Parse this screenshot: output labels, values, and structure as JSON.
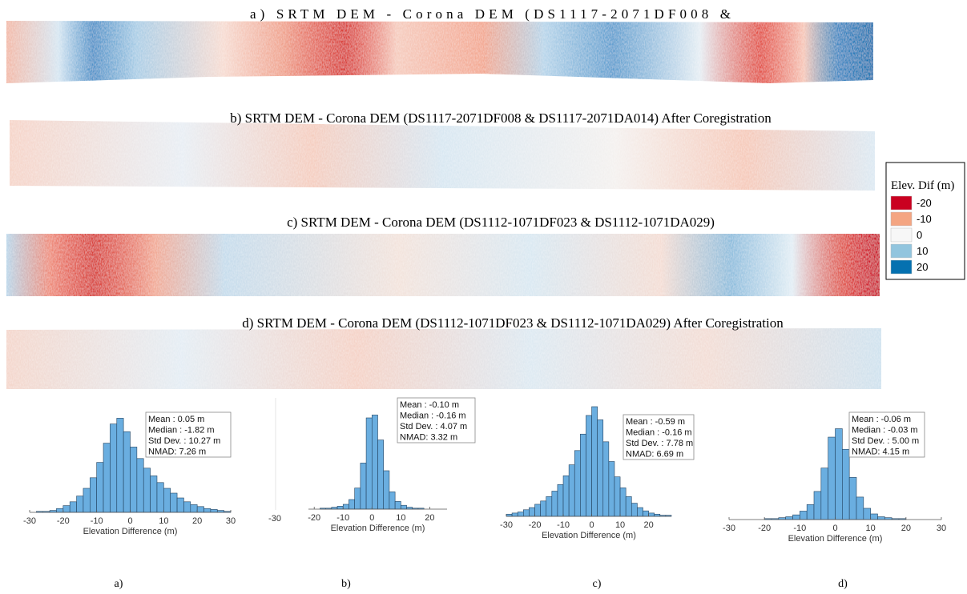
{
  "panels": [
    {
      "title": "a) SRTM DEM - Corona DEM (DS1117-2071DF008 &"
    },
    {
      "title": "b) SRTM DEM - Corona DEM (DS1117-2071DF008 & DS1117-2071DA014) After Coregistration"
    },
    {
      "title": "c) SRTM DEM - Corona DEM (DS1112-1071DF023 & DS1112-1071DA029)"
    },
    {
      "title": "d) SRTM DEM - Corona DEM (DS1112-1071DF023 & DS1112-1071DA029) After Coregistration"
    }
  ],
  "legend": {
    "title": "Elev. Dif (m)",
    "entries": [
      {
        "label": -20,
        "color": "#ca0020"
      },
      {
        "label": -10,
        "color": "#f4a582"
      },
      {
        "label": 0,
        "color": "#f7f7f7"
      },
      {
        "label": 10,
        "color": "#92c5de"
      },
      {
        "label": 20,
        "color": "#0571b0"
      }
    ]
  },
  "chart_data": [
    {
      "type": "histogram",
      "xlabel": "Elevation Difference (m)",
      "caption": "a)",
      "color": "#6aaee0",
      "bins": [
        -30,
        -28,
        -26,
        -24,
        -22,
        -20,
        -18,
        -16,
        -14,
        -12,
        -10,
        -8,
        -6,
        -4,
        -2,
        0,
        2,
        4,
        6,
        8,
        10,
        12,
        14,
        16,
        18,
        20,
        22,
        24,
        26,
        28,
        30
      ],
      "values": [
        0,
        1,
        1,
        2,
        4,
        7,
        11,
        17,
        25,
        36,
        52,
        72,
        92,
        98,
        84,
        68,
        56,
        46,
        38,
        31,
        25,
        20,
        15,
        11,
        8,
        6,
        4,
        3,
        2,
        1
      ],
      "xlim": [
        -30,
        30
      ],
      "xticks": [
        -30,
        -20,
        -10,
        0,
        10,
        20,
        30
      ],
      "ylim": [
        0,
        100
      ],
      "stats": [
        "Mean : 0.05 m",
        "Median : -1.82 m",
        "Std Dev. : 10.27 m",
        "NMAD: 7.26 m"
      ]
    },
    {
      "type": "histogram",
      "xlabel": "Elevation Difference (m)",
      "caption": "b)",
      "color": "#6aaee0",
      "bins": [
        -22,
        -20,
        -18,
        -16,
        -14,
        -12,
        -10,
        -8,
        -6,
        -4,
        -2,
        0,
        2,
        4,
        6,
        8,
        10,
        12,
        14,
        16,
        18,
        20,
        22,
        24,
        26
      ],
      "values": [
        0,
        0,
        1,
        1,
        2,
        3,
        5,
        10,
        22,
        48,
        95,
        98,
        72,
        40,
        18,
        8,
        4,
        2,
        1,
        1,
        0,
        0,
        0,
        0
      ],
      "xlim": [
        -22,
        26
      ],
      "xticks": [
        -20,
        -10,
        0,
        10,
        20
      ],
      "ylim": [
        0,
        100
      ],
      "stray_tick": -30,
      "stats": [
        "Mean : -0.10 m",
        "Median : -0.16 m",
        "Std Dev. : 4.07 m",
        "NMAD: 3.32 m"
      ]
    },
    {
      "type": "histogram",
      "xlabel": "Elevation Difference (m)",
      "caption": "c)",
      "color": "#6aaee0",
      "bins": [
        -30,
        -28,
        -26,
        -24,
        -22,
        -20,
        -18,
        -16,
        -14,
        -12,
        -10,
        -8,
        -6,
        -4,
        -2,
        0,
        2,
        4,
        6,
        8,
        10,
        12,
        14,
        16,
        18,
        20,
        22,
        24,
        26,
        28
      ],
      "values": [
        2,
        3,
        4,
        6,
        8,
        11,
        14,
        18,
        23,
        29,
        37,
        47,
        60,
        75,
        92,
        100,
        88,
        68,
        50,
        36,
        26,
        18,
        12,
        8,
        5,
        3,
        2,
        1,
        1
      ],
      "xlim": [
        -30,
        28
      ],
      "xticks": [
        -30,
        -20,
        -10,
        0,
        10,
        20
      ],
      "ylim": [
        0,
        100
      ],
      "stats": [
        "Mean : -0.59 m",
        "Median : -0.16 m",
        "Std Dev. : 7.78 m",
        "NMAD: 6.69 m"
      ]
    },
    {
      "type": "histogram",
      "xlabel": "Elevation Difference (m)",
      "caption": "d)",
      "color": "#6aaee0",
      "bins": [
        -30,
        -28,
        -26,
        -24,
        -22,
        -20,
        -18,
        -16,
        -14,
        -12,
        -10,
        -8,
        -6,
        -4,
        -2,
        0,
        2,
        4,
        6,
        8,
        10,
        12,
        14,
        16,
        18,
        20,
        22,
        24,
        26,
        28,
        30
      ],
      "values": [
        0,
        0,
        0,
        0,
        0,
        1,
        1,
        2,
        3,
        5,
        9,
        16,
        30,
        55,
        88,
        97,
        75,
        45,
        24,
        12,
        6,
        3,
        2,
        1,
        1,
        0,
        0,
        0,
        0,
        0
      ],
      "xlim": [
        -30,
        30
      ],
      "xticks": [
        -30,
        -20,
        -10,
        0,
        10,
        20,
        30
      ],
      "ylim": [
        0,
        100
      ],
      "stats": [
        "Mean : -0.06 m",
        "Median : -0.03 m",
        "Std Dev. : 5.00 m",
        "NMAD: 4.15 m"
      ]
    }
  ]
}
